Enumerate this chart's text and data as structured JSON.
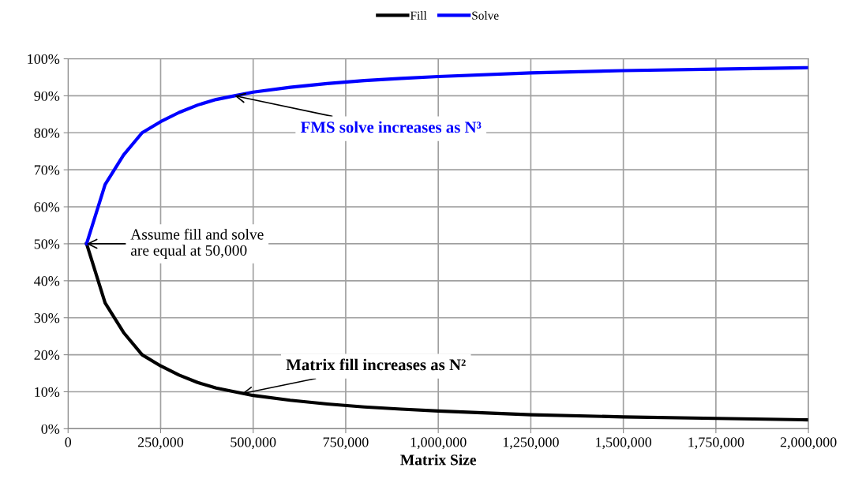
{
  "chart_data": {
    "type": "line",
    "xlabel": "Matrix Size",
    "x": [
      50000,
      100000,
      150000,
      200000,
      250000,
      300000,
      350000,
      400000,
      450000,
      500000,
      600000,
      700000,
      800000,
      900000,
      1000000,
      1250000,
      1500000,
      1750000,
      2000000
    ],
    "series": [
      {
        "name": "Fill",
        "color": "#000000",
        "values": [
          50,
          34,
          26,
          20,
          17,
          14.5,
          12.5,
          11,
          10,
          9,
          7.7,
          6.7,
          5.9,
          5.3,
          4.8,
          3.8,
          3.2,
          2.8,
          2.4
        ]
      },
      {
        "name": "Solve",
        "color": "#0000ff",
        "values": [
          50,
          66,
          74,
          80,
          83,
          85.5,
          87.5,
          89,
          90,
          91,
          92.3,
          93.3,
          94.1,
          94.7,
          95.2,
          96.2,
          96.8,
          97.2,
          97.6
        ]
      }
    ],
    "xlim": [
      0,
      2000000
    ],
    "xticks": [
      {
        "value": 0,
        "label": "0"
      },
      {
        "value": 250000,
        "label": "250,000"
      },
      {
        "value": 500000,
        "label": "500,000"
      },
      {
        "value": 750000,
        "label": "750,000"
      },
      {
        "value": 1000000,
        "label": "1,000,000"
      },
      {
        "value": 1250000,
        "label": "1,250,000"
      },
      {
        "value": 1500000,
        "label": "1,500,000"
      },
      {
        "value": 1750000,
        "label": "1,750,000"
      },
      {
        "value": 2000000,
        "label": "2,000,000"
      }
    ],
    "ylim": [
      0,
      100
    ],
    "yticks": [
      {
        "value": 0,
        "label": "0%"
      },
      {
        "value": 10,
        "label": "10%"
      },
      {
        "value": 20,
        "label": "20%"
      },
      {
        "value": 30,
        "label": "30%"
      },
      {
        "value": 40,
        "label": "40%"
      },
      {
        "value": 50,
        "label": "50%"
      },
      {
        "value": 60,
        "label": "60%"
      },
      {
        "value": 70,
        "label": "70%"
      },
      {
        "value": 80,
        "label": "80%"
      },
      {
        "value": 90,
        "label": "90%"
      },
      {
        "value": 100,
        "label": "100%"
      }
    ],
    "annotations": [
      {
        "text": "FMS solve increases as N³",
        "x": 450000,
        "y": 90
      },
      {
        "text": "Assume fill and solve\nare equal at 50,000",
        "x": 50000,
        "y": 50
      },
      {
        "text": "Matrix fill increases as N²",
        "x": 470000,
        "y": 9.5
      }
    ],
    "grid": true,
    "legend": "top",
    "marker": "none",
    "line_style": "solid"
  }
}
